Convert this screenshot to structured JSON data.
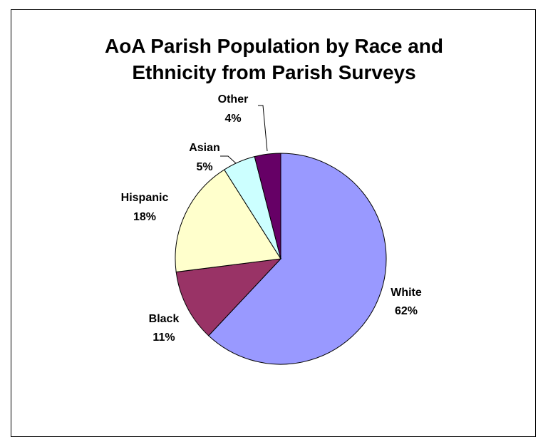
{
  "chart_data": {
    "type": "pie",
    "title_lines": [
      "AoA Parish Population by Race and",
      "Ethnicity from Parish Surveys"
    ],
    "categories": [
      "White",
      "Black",
      "Hispanic",
      "Asian",
      "Other"
    ],
    "values": [
      62,
      11,
      18,
      5,
      4
    ],
    "value_labels": [
      "62%",
      "11%",
      "18%",
      "5%",
      "4%"
    ],
    "colors": [
      "#9999FF",
      "#993366",
      "#FFFFCC",
      "#CCFFFF",
      "#660066"
    ],
    "legend": "none"
  }
}
